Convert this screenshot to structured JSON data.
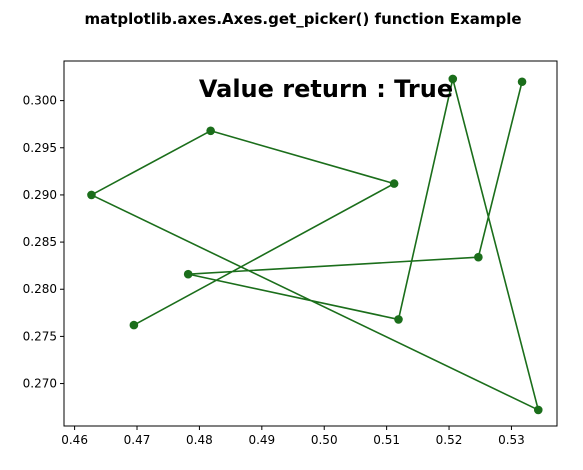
{
  "chart_data": {
    "type": "line",
    "title": "matplotlib.axes.Axes.get_picker() function Example",
    "annotation": "Value return : True",
    "xlabel": "",
    "ylabel": "",
    "xlim": [
      0.4583,
      0.5373
    ],
    "ylim": [
      0.2655,
      0.3042
    ],
    "xticks": [
      0.46,
      0.47,
      0.48,
      0.49,
      0.5,
      0.51,
      0.52,
      0.53
    ],
    "xtick_labels": [
      "0.46",
      "0.47",
      "0.48",
      "0.49",
      "0.50",
      "0.51",
      "0.52",
      "0.53"
    ],
    "yticks": [
      0.27,
      0.275,
      0.28,
      0.285,
      0.29,
      0.295,
      0.3
    ],
    "ytick_labels": [
      "0.270",
      "0.275",
      "0.280",
      "0.285",
      "0.290",
      "0.295",
      "0.300"
    ],
    "grid": false,
    "color": "#1b6e1b",
    "marker": "circle",
    "series": [
      {
        "x": [
          0.4695,
          0.5112,
          0.4818,
          0.4627,
          0.5343,
          0.5206,
          0.5119,
          0.4782,
          0.5247,
          0.5317
        ],
        "y": [
          0.2762,
          0.2912,
          0.2968,
          0.29,
          0.2672,
          0.3023,
          0.2768,
          0.2816,
          0.2834,
          0.302
        ]
      }
    ]
  }
}
